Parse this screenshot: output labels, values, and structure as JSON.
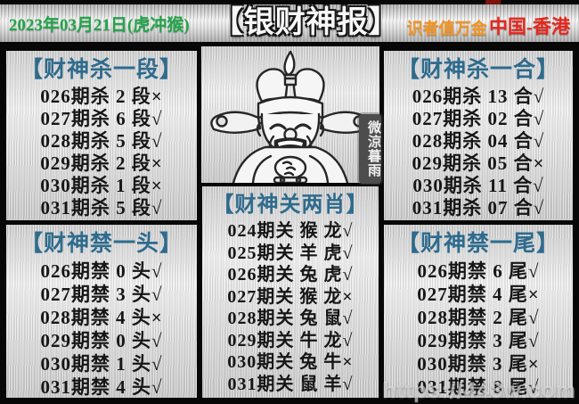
{
  "header": {
    "date": "2023年03月21日(虎冲猴)",
    "title": "【银财神报】",
    "subtitle": "识者值万金",
    "region": "中国-香港"
  },
  "panels": {
    "kill_segment": {
      "title": "【财神杀一段】",
      "rows": [
        "026期杀 2 段×",
        "027期杀 6 段√",
        "028期杀 5 段√",
        "029期杀 2 段×",
        "030期杀 1 段×",
        "031期杀 5 段√"
      ]
    },
    "kill_sum": {
      "title": "【财神杀一合】",
      "rows": [
        "026期杀 13 合√",
        "027期杀 02 合√",
        "028期杀 04 合√",
        "029期杀 05 合×",
        "030期杀 11 合√",
        "031期杀 07 合√"
      ]
    },
    "ban_head": {
      "title": "【财神禁一头】",
      "rows": [
        "026期禁 0 头√",
        "027期禁 3 头√",
        "028期禁 4 头×",
        "029期禁 0 头√",
        "030期禁 1 头√",
        "031期禁 4 头√"
      ]
    },
    "link_zodiac": {
      "title": "【财神关两肖】",
      "rows": [
        "024期关 猴 龙√",
        "025期关 羊 虎√",
        "026期关 兔 虎√",
        "027期关 猴 龙×",
        "028期关 兔 鼠√",
        "029期关 牛 龙√",
        "030期关 兔 牛×",
        "031期关 鼠 羊√"
      ]
    },
    "ban_tail": {
      "title": "【财神禁一尾】",
      "rows": [
        "026期禁 6 尾√",
        "027期禁 4 尾×",
        "028期禁 2 尾√",
        "029期禁 3 尾√",
        "030期禁 3 尾×",
        "031期禁 8 尾√"
      ]
    }
  },
  "god": {
    "stamp_text": "微涼暮雨"
  },
  "watermark": "https://448w.com",
  "colors": {
    "panel_header_blue": "#2e6b8d",
    "date_green": "#23a44a",
    "subtitle_orange": "#f7941e",
    "region_red": "#e8251c",
    "body_text": "#161616",
    "metal_base": "#d9d9d9"
  }
}
